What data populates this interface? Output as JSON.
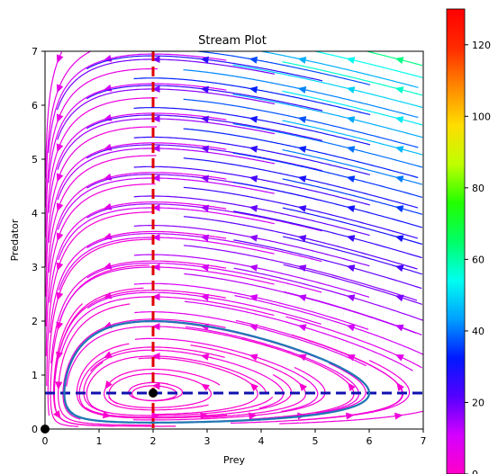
{
  "chart_data": {
    "type": "streamplot",
    "title": "Stream Plot",
    "xlabel": "Prey",
    "ylabel": "Predator",
    "xlim": [
      0,
      7
    ],
    "ylim": [
      0,
      7
    ],
    "xticks": [
      "0",
      "1",
      "2",
      "3",
      "4",
      "5",
      "6",
      "7"
    ],
    "yticks": [
      "0",
      "1",
      "2",
      "3",
      "4",
      "5",
      "6",
      "7"
    ],
    "grid": false,
    "colormap": "gist_rainbow_r",
    "colorbar": {
      "range": [
        0,
        130
      ],
      "ticks": [
        "0",
        "20",
        "40",
        "60",
        "80",
        "100",
        "120"
      ],
      "position": "right",
      "stops": [
        "#ff00c8",
        "#d400ff",
        "#5500ff",
        "#0019ff",
        "#00a0ff",
        "#00fff0",
        "#00ff66",
        "#22ff00",
        "#bfff00",
        "#ffdd00",
        "#ff8800",
        "#ff2a00",
        "#ff0000"
      ]
    },
    "equilibria": [
      {
        "x": 0,
        "y": 0
      },
      {
        "x": 2,
        "y": 0.667
      }
    ],
    "nullclines": [
      {
        "orientation": "vertical",
        "x": 2,
        "color": "#e00000",
        "style": "dashed"
      },
      {
        "orientation": "horizontal",
        "y": 0.667,
        "color": "#1010b0",
        "style": "dashed"
      }
    ],
    "trajectory": {
      "color": "#1f77b4",
      "start": {
        "x": 2,
        "y": 2
      }
    }
  }
}
